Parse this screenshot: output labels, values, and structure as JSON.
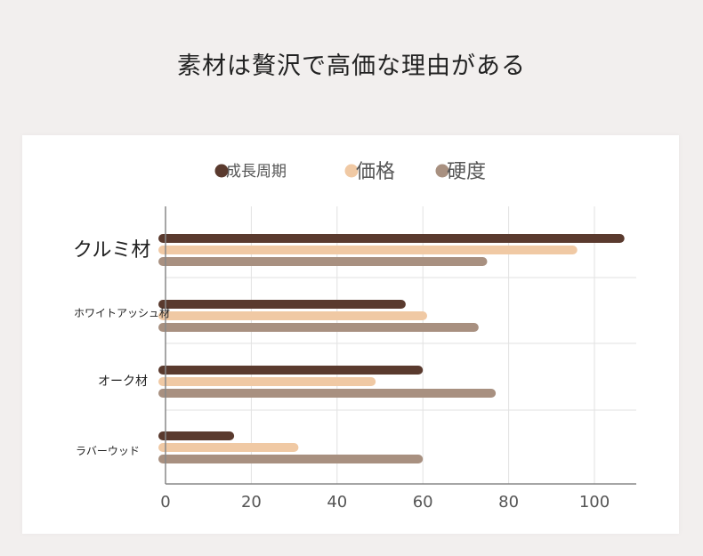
{
  "page": {
    "title": "素材は贅沢で高価な理由がある"
  },
  "chart_data": {
    "type": "bar",
    "orientation": "horizontal",
    "title": "",
    "xlabel": "",
    "ylabel": "",
    "xlim": [
      0,
      110
    ],
    "x_ticks": [
      "0",
      "20",
      "40",
      "60",
      "80",
      "100"
    ],
    "grid": true,
    "legend_position": "top-center",
    "categories": [
      "クルミ材",
      "ホワイトアッシュ材",
      "オーク材",
      "ラバーウッド"
    ],
    "series": [
      {
        "name": "成長周期",
        "color": "#5a3a2e",
        "values": [
          107,
          56,
          60,
          16
        ]
      },
      {
        "name": "価格",
        "color": "#f0c9a4",
        "values": [
          96,
          61,
          49,
          31
        ]
      },
      {
        "name": "硬度",
        "color": "#a89080",
        "values": [
          75,
          73,
          77,
          60
        ]
      }
    ]
  }
}
